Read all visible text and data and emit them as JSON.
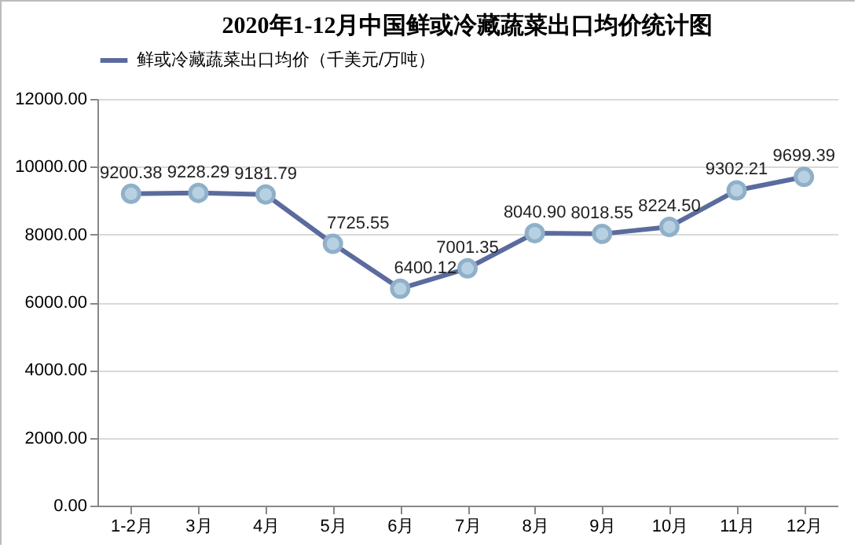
{
  "chart_data": {
    "type": "line",
    "title": "2020年1-12月中国鲜或冷藏蔬菜出口均价统计图",
    "categories": [
      "1-2月",
      "3月",
      "4月",
      "5月",
      "6月",
      "7月",
      "8月",
      "9月",
      "10月",
      "11月",
      "12月"
    ],
    "series": [
      {
        "name": "鲜或冷藏蔬菜出口均价（千美元/万吨）",
        "color": "#5b6b9e",
        "values": [
          9200.38,
          9228.29,
          9181.79,
          7725.55,
          6400.12,
          7001.35,
          8040.9,
          8018.55,
          8224.5,
          9302.21,
          9699.39
        ],
        "value_labels": [
          "9200.38",
          "9228.29",
          "9181.79",
          "7725.55",
          "6400.12",
          "7001.35",
          "8040.90",
          "8018.55",
          "8224.50",
          "9302.21",
          "9699.39"
        ]
      }
    ],
    "ylim": [
      0,
      12000
    ],
    "yticks": [
      {
        "value": 0,
        "label": "0.00"
      },
      {
        "value": 2000,
        "label": "2000.00"
      },
      {
        "value": 4000,
        "label": "4000.00"
      },
      {
        "value": 6000,
        "label": "6000.00"
      },
      {
        "value": 8000,
        "label": "8000.00"
      },
      {
        "value": 10000,
        "label": "10000.00"
      },
      {
        "value": 12000,
        "label": "12000.00"
      }
    ],
    "grid": "y",
    "legend": "top",
    "marker": "circle"
  }
}
